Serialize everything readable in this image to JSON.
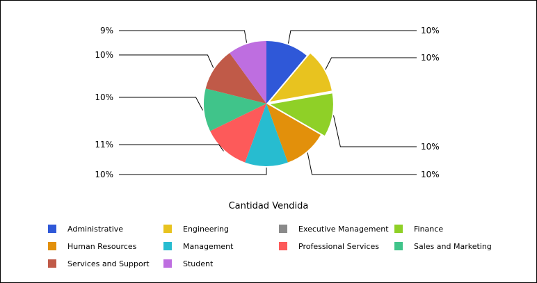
{
  "chart_data": {
    "type": "pie",
    "title": "Cantidad Vendida",
    "labels": [
      "Administrative",
      "Engineering",
      "Executive Management",
      "Finance",
      "Human Resources",
      "Management",
      "Professional Services",
      "Sales and Marketing",
      "Services and Support",
      "Student"
    ],
    "values": [
      10,
      10,
      0,
      10,
      10,
      10,
      11,
      10,
      10,
      9
    ],
    "display_labels": [
      "10%",
      "10%",
      "",
      "10%",
      "10%",
      "10%",
      "11%",
      "10%",
      "10%",
      "9%"
    ],
    "colors": [
      "#2f58d8",
      "#e8c31f",
      "#8a8a8a",
      "#8fd027",
      "#e2900b",
      "#27bcd0",
      "#fd5a5a",
      "#40c48a",
      "#c05a48",
      "#be6ee0"
    ],
    "exploded": [
      false,
      true,
      false,
      true,
      false,
      false,
      false,
      false,
      false,
      false
    ],
    "legend_position": "bottom",
    "legend_columns": 4
  }
}
